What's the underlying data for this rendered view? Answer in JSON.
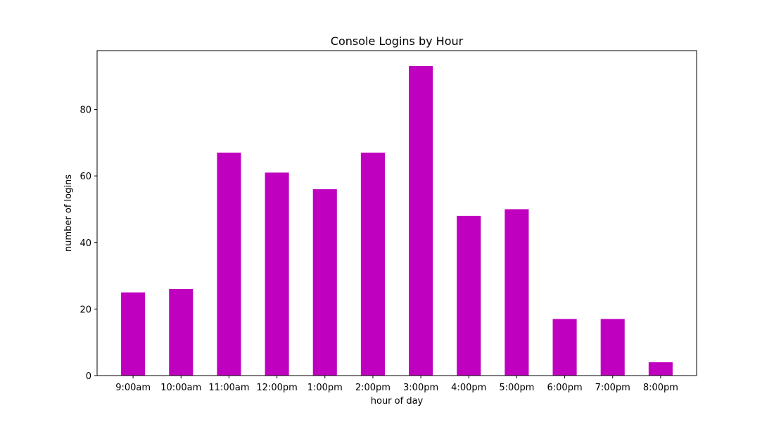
{
  "chart_data": {
    "type": "bar",
    "title": "Console Logins by Hour",
    "xlabel": "hour of day",
    "ylabel": "number of logins",
    "categories": [
      "9:00am",
      "10:00am",
      "11:00am",
      "12:00pm",
      "1:00pm",
      "2:00pm",
      "3:00pm",
      "4:00pm",
      "5:00pm",
      "6:00pm",
      "7:00pm",
      "8:00pm"
    ],
    "values": [
      25,
      26,
      67,
      61,
      56,
      67,
      93,
      48,
      50,
      17,
      17,
      4
    ],
    "ylim": [
      0,
      97.65
    ],
    "yticks": [
      0,
      20,
      40,
      60,
      80
    ],
    "bar_color": "#bf00bf",
    "grid": false,
    "legend": "none"
  }
}
